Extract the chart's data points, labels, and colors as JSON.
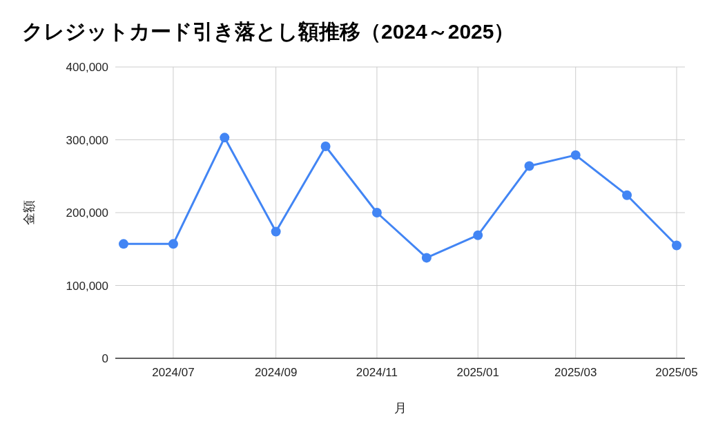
{
  "chart_data": {
    "type": "line",
    "title": "クレジットカード引き落とし額推移（2024～2025）",
    "xlabel": "月",
    "ylabel": "金額",
    "x": [
      "2024-06",
      "2024-07",
      "2024-08",
      "2024-09",
      "2024-10",
      "2024-11",
      "2024-12",
      "2025-01",
      "2025-02",
      "2025-03",
      "2025-04",
      "2025-05"
    ],
    "series": [
      {
        "color": "#4285f4",
        "values": [
          157000,
          157000,
          303000,
          174000,
          291000,
          200000,
          138000,
          169000,
          264000,
          279000,
          224000,
          155000
        ]
      }
    ],
    "xlim": [
      "2024-05-27",
      "2025-05-06"
    ],
    "xticks": [
      {
        "value": "2024-07",
        "label": "2024/07"
      },
      {
        "value": "2024-09",
        "label": "2024/09"
      },
      {
        "value": "2024-11",
        "label": "2024/11"
      },
      {
        "value": "2025-01",
        "label": "2025/01"
      },
      {
        "value": "2025-03",
        "label": "2025/03"
      },
      {
        "value": "2025-05",
        "label": "2025/05"
      }
    ],
    "ylim": [
      0,
      400000
    ],
    "yticks": [
      {
        "value": 0,
        "label": "0"
      },
      {
        "value": 100000,
        "label": "100,000"
      },
      {
        "value": 200000,
        "label": "200,000"
      },
      {
        "value": 300000,
        "label": "300,000"
      },
      {
        "value": 400000,
        "label": "400,000"
      }
    ],
    "grid": true,
    "marker": "circle",
    "line_style": "solid"
  }
}
